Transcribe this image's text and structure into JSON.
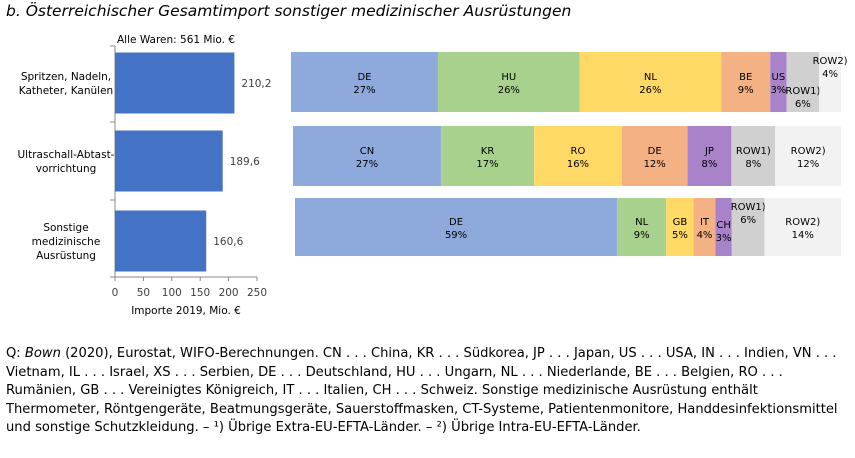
{
  "title": "b.  Österreichischer Gesamtimport sonstiger medizinischer Ausrüstungen",
  "chart_data": [
    {
      "type": "bar",
      "orientation": "horizontal",
      "annotation": "Alle Waren: 561 Mio. €",
      "categories": [
        "Spritzen, Nadeln, Katheter, Kanülen",
        "Ultraschall-Abtast-vorrichtung",
        "Sonstige medizinische Ausrüstung"
      ],
      "category_lines": [
        [
          "Spritzen, Nadeln,",
          "Katheter, Kanülen"
        ],
        [
          "Ultraschall-Abtast-",
          "vorrichtung"
        ],
        [
          "Sonstige",
          "medizinische",
          "Ausrüstung"
        ]
      ],
      "values": [
        210.2,
        189.6,
        160.6
      ],
      "value_labels": [
        "210,2",
        "189,6",
        "160,6"
      ],
      "xlabel": "Importe 2019, Mio. €",
      "xlim": [
        0,
        250
      ],
      "xticks": [
        "0",
        "50",
        "100",
        "150",
        "200",
        "250"
      ],
      "grid": false,
      "bar_color": "#4472C4"
    },
    {
      "type": "bar",
      "orientation": "horizontal",
      "stacked": true,
      "unit": "%",
      "xlim": [
        0,
        100
      ],
      "rows": [
        {
          "segments": [
            {
              "label": "DE",
              "value": 27,
              "color": "#8EA9DB"
            },
            {
              "label": "HU",
              "value": 26,
              "color": "#A9D18E"
            },
            {
              "label": "NL",
              "value": 26,
              "color": "#FFD966"
            },
            {
              "label": "BE",
              "value": 9,
              "color": "#F4B183"
            },
            {
              "label": "US",
              "value": 3,
              "color": "#A983C9"
            },
            {
              "label": "ROW1)",
              "value": 6,
              "color": "#D0D0D0"
            },
            {
              "label": "ROW2)",
              "value": 4,
              "color": "#F2F2F2"
            }
          ]
        },
        {
          "segments": [
            {
              "label": "CN",
              "value": 27,
              "color": "#8EA9DB"
            },
            {
              "label": "KR",
              "value": 17,
              "color": "#A9D18E"
            },
            {
              "label": "RO",
              "value": 16,
              "color": "#FFD966"
            },
            {
              "label": "DE",
              "value": 12,
              "color": "#F4B183"
            },
            {
              "label": "JP",
              "value": 8,
              "color": "#A983C9"
            },
            {
              "label": "ROW1)",
              "value": 8,
              "color": "#D0D0D0"
            },
            {
              "label": "ROW2)",
              "value": 12,
              "color": "#F2F2F2"
            }
          ]
        },
        {
          "segments": [
            {
              "label": "DE",
              "value": 59,
              "color": "#8EA9DB"
            },
            {
              "label": "NL",
              "value": 9,
              "color": "#A9D18E"
            },
            {
              "label": "GB",
              "value": 5,
              "color": "#FFD966"
            },
            {
              "label": "IT",
              "value": 4,
              "color": "#F4B183"
            },
            {
              "label": "CH",
              "value": 3,
              "color": "#A983C9"
            },
            {
              "label": "ROW1)",
              "value": 6,
              "color": "#D0D0D0"
            },
            {
              "label": "ROW2)",
              "value": 14,
              "color": "#F2F2F2"
            }
          ]
        }
      ]
    }
  ],
  "footnote": {
    "prefix": "Q: ",
    "author": "Bown",
    "text": " (2020), Eurostat, WIFO-Berechnungen. CN . . . China, KR . . . Südkorea, JP . . . Japan, US . . . USA, IN . . . Indien, VN . . . Vietnam, IL . . . Israel, XS . . . Serbien, DE . . . Deutschland, HU . . . Ungarn, NL . . . Niederlande, BE . . . Belgien, RO . . . Rumänien, GB . . . Vereinigtes Königreich, IT . . . Italien, CH . . . Schweiz. Sonstige medizinische Ausrüstung enthält Thermometer, Röntgengeräte, Beatmungsgeräte, Sauerstoffmasken, CT-Systeme, Patientenmonitore, Handdesinfektionsmittel und sonstige Schutzkleidung. – ¹) Übrige Extra-EU-EFTA-Länder. – ²) Übrige Intra-EU-EFTA-Länder."
  }
}
